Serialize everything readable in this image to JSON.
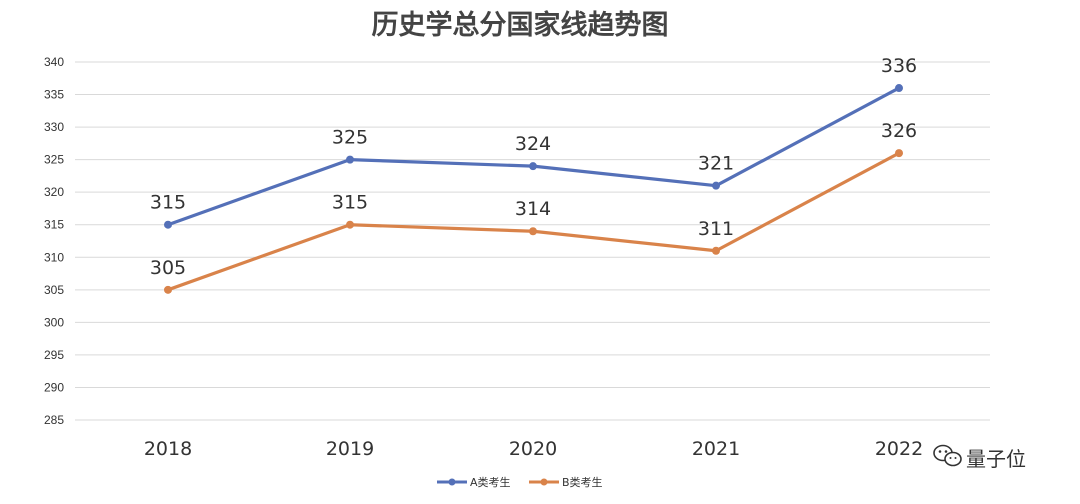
{
  "chart_data": {
    "type": "line",
    "title": "历史学总分国家线趋势图",
    "xlabel": "",
    "ylabel": "",
    "categories": [
      "2018",
      "2019",
      "2020",
      "2021",
      "2022"
    ],
    "ylim": [
      285,
      340
    ],
    "yticks": [
      340,
      335,
      330,
      325,
      320,
      315,
      310,
      305,
      300,
      295,
      290,
      285
    ],
    "grid": true,
    "legend_position": "bottom",
    "series": [
      {
        "name": "A类考生",
        "color": "#5470b8",
        "values": [
          315,
          325,
          324,
          321,
          336
        ]
      },
      {
        "name": "B类考生",
        "color": "#d9834a",
        "values": [
          305,
          315,
          314,
          311,
          326
        ]
      }
    ]
  },
  "watermark": {
    "text": "量子位",
    "icon": "wechat-icon"
  }
}
